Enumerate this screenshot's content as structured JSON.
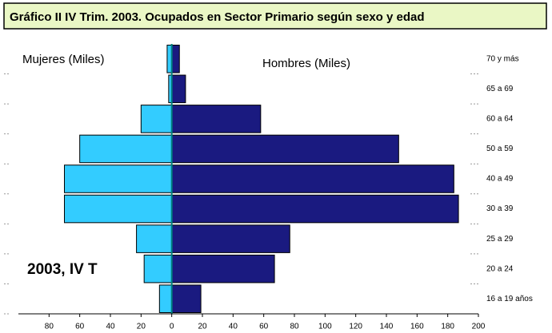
{
  "chart_data": {
    "type": "pyramid",
    "title": "Gráfico II  IV Trim. 2003. Ocupados en Sector Primario según sexo y edad",
    "annotations": [
      "2003, IV T"
    ],
    "categories": [
      "16 a 19 años",
      "20 a 24",
      "25 a 29",
      "30 a 39",
      "40 a 49",
      "50 a 59",
      "60 a 64",
      "65 a 69",
      "70 y más"
    ],
    "series": [
      {
        "name": "Mujeres (Miles)",
        "color": "#33ccff",
        "values": [
          -8,
          -18,
          -23,
          -70,
          -70,
          -60,
          -20,
          -2,
          -3
        ]
      },
      {
        "name": "Hombres (Miles)",
        "color": "#1a1a80",
        "values": [
          19,
          67,
          77,
          187,
          184,
          148,
          58,
          9,
          5
        ]
      }
    ],
    "xlim": [
      -100,
      200
    ],
    "xticks": [
      {
        "value": -80,
        "label": "80"
      },
      {
        "value": -60,
        "label": "60"
      },
      {
        "value": -40,
        "label": "40"
      },
      {
        "value": -20,
        "label": "20"
      },
      0,
      20,
      40,
      60,
      80,
      100,
      120,
      140,
      160,
      180,
      200
    ]
  }
}
